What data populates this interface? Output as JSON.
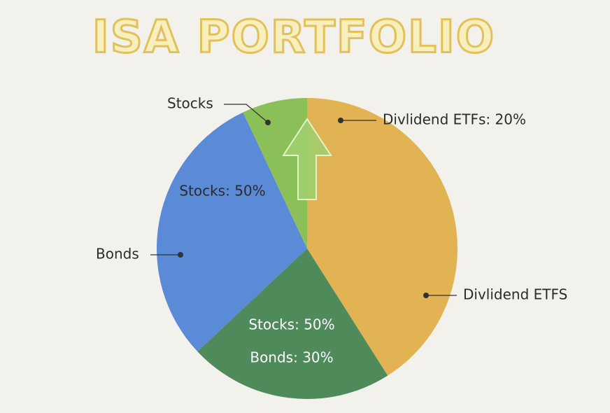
{
  "chart_data": {
    "type": "pie",
    "title": "ISA PORTFOLIO",
    "values": [
      41,
      22,
      30,
      7
    ],
    "colors": [
      "#e1b352",
      "#4e8a5a",
      "#5b8ad6",
      "#8bc058"
    ],
    "annotations": [
      {
        "text": "Stocks"
      },
      {
        "text": "Divlidend ETFs: 20%"
      },
      {
        "text": "Stocks: 50%"
      },
      {
        "text": "Bonds"
      },
      {
        "text": "Divlidend ETFS"
      },
      {
        "text": "Stocks: 50%"
      },
      {
        "text": "Bonds: 30%"
      }
    ]
  }
}
